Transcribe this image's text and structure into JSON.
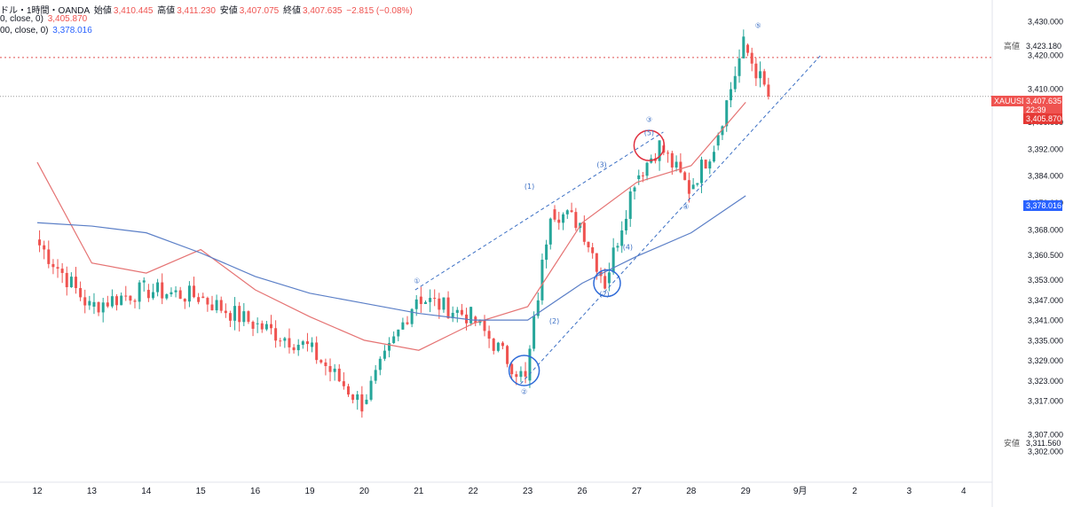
{
  "header": {
    "line1": {
      "prefix": "ドル・1時間・OANDA",
      "open_label": "始値",
      "open": "3,410.445",
      "high_label": "高値",
      "high": "3,411.230",
      "low_label": "安値",
      "low": "3,407.075",
      "close_label": "終値",
      "close": "3,407.635",
      "change": "−2.815 (−0.08%)"
    },
    "line2": {
      "label": "0, close, 0)",
      "value": "3,405.870"
    },
    "line3": {
      "label": "00, close, 0)",
      "value": "3,378.016"
    }
  },
  "price_tags": {
    "high_label": "高値",
    "high_value": "3,423.180",
    "low_label": "安値",
    "low_value": "3,311.560",
    "symbol": "XAUUSD",
    "last": "3,407.635",
    "countdown": "22:39",
    "ma_short": "3,405.870",
    "ma_long": "3,378.016"
  },
  "colors": {
    "up": "#26a69a",
    "down": "#ef5350",
    "ma_short": "#e57373",
    "ma_long": "#5b7fc7",
    "wave": "#3b6fc4",
    "circle_blue": "#2f6bd8",
    "circle_red": "#e0303f",
    "high_line": "#e05050",
    "last_line": "#999999"
  },
  "chart_data": {
    "type": "candlestick",
    "symbol": "XAUUSD",
    "interval": "1 hour",
    "y_axis_ticks": [
      "3,430.000",
      "3,420.000",
      "3,410.000",
      "3,400.000",
      "3,392.000",
      "3,384.000",
      "3,376.000",
      "3,368.000",
      "3,360.500",
      "3,353.000",
      "3,347.000",
      "3,341.000",
      "3,335.000",
      "3,329.000",
      "3,323.000",
      "3,317.000",
      "3,307.000",
      "3,302.000"
    ],
    "x_axis_ticks": [
      "12",
      "13",
      "14",
      "15",
      "16",
      "19",
      "20",
      "21",
      "22",
      "23",
      "26",
      "27",
      "28",
      "29",
      "9月",
      "2",
      "3",
      "4"
    ],
    "series": [
      {
        "name": "MA short (close)",
        "x": [
          "12",
          "13",
          "14",
          "15",
          "16",
          "19",
          "20",
          "21",
          "22",
          "23",
          "26",
          "27",
          "28",
          "29"
        ],
        "values": [
          3388,
          3358,
          3355,
          3362,
          3350,
          3342,
          3335,
          3332,
          3340,
          3345,
          3370,
          3382,
          3387,
          3405.87
        ]
      },
      {
        "name": "MA long (close)",
        "x": [
          "12",
          "13",
          "14",
          "15",
          "16",
          "19",
          "20",
          "21",
          "22",
          "23",
          "26",
          "27",
          "28",
          "29"
        ],
        "values": [
          3370,
          3369,
          3367,
          3361,
          3354,
          3349,
          3346,
          3343,
          3341,
          3341,
          3352,
          3360,
          3367,
          3378.016
        ]
      }
    ],
    "ohlc_path": {
      "x": [
        "12",
        "13",
        "14",
        "15",
        "16",
        "19",
        "20",
        "21",
        "22",
        "23",
        "23",
        "26",
        "26",
        "27",
        "27",
        "28",
        "28",
        "29",
        "29"
      ],
      "close": [
        3365,
        3345,
        3350,
        3348,
        3340,
        3333,
        3316,
        3348,
        3342,
        3323,
        3374,
        3370,
        3352,
        3383,
        3393,
        3380,
        3393,
        3423,
        3407.6
      ]
    },
    "annotations": [
      "①",
      "②",
      "(1)",
      "(2)",
      "(3)",
      "(4)",
      "(5)",
      "③",
      "④",
      "⑤",
      "(2)"
    ],
    "session_high": 3423.18,
    "session_low": 3311.56,
    "last": 3407.635,
    "grid": false
  }
}
